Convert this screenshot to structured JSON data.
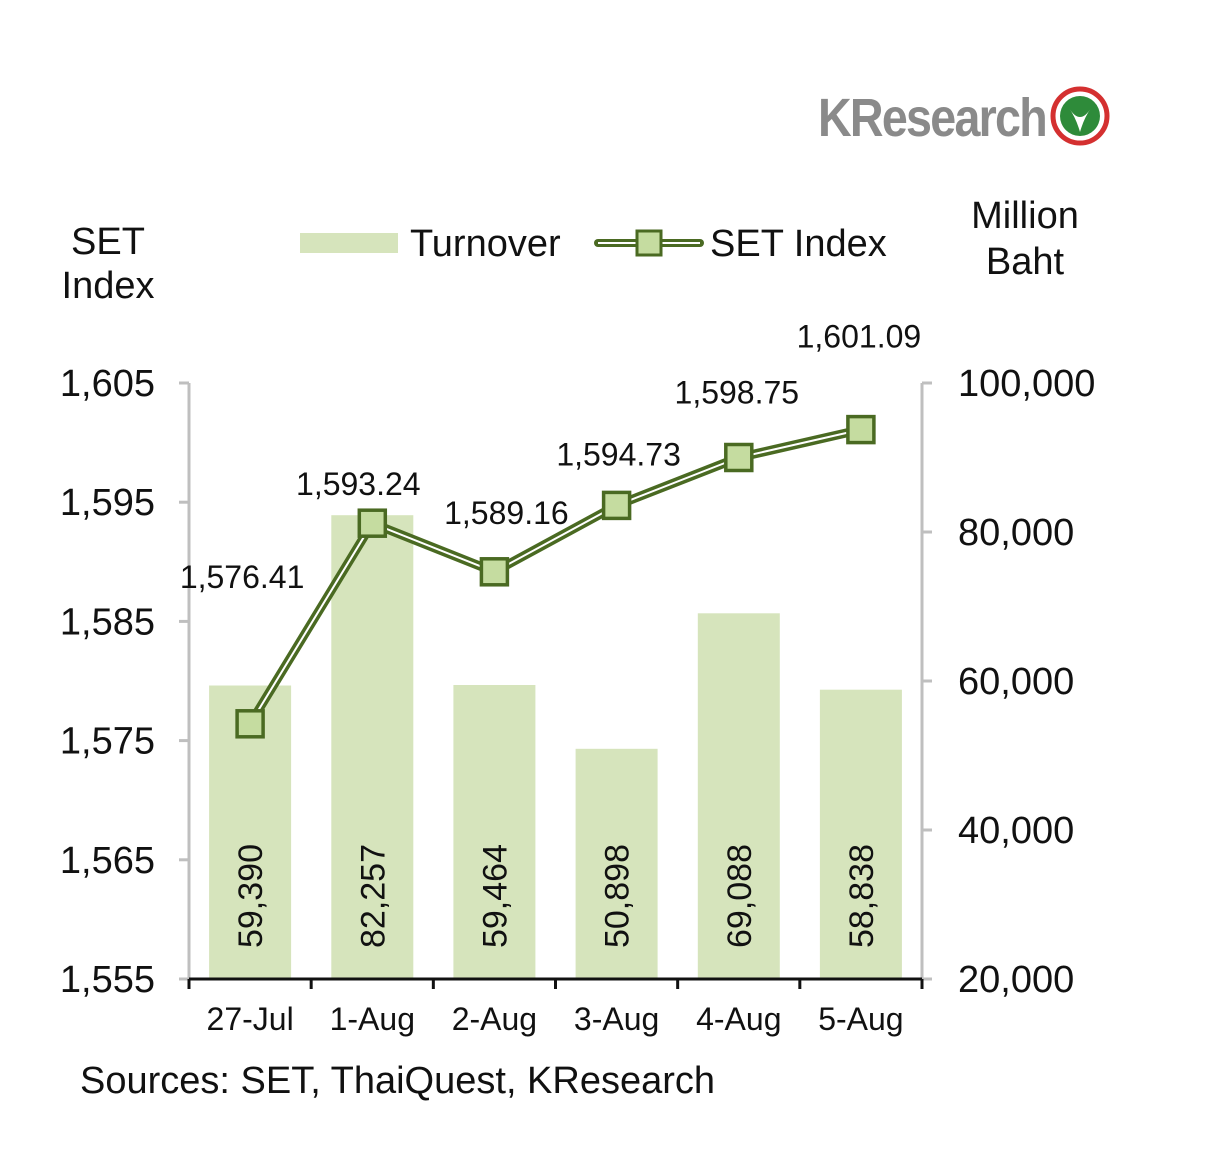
{
  "logo": {
    "text": "KResearch"
  },
  "chart_data": {
    "type": "bar",
    "categories": [
      "27-Jul",
      "1-Aug",
      "2-Aug",
      "3-Aug",
      "4-Aug",
      "5-Aug"
    ],
    "series": [
      {
        "name": "Turnover",
        "type": "bar",
        "axis": "right",
        "values": [
          59390,
          82257,
          59464,
          50898,
          69088,
          58838
        ],
        "labels": [
          "59,390",
          "82,257",
          "59,464",
          "50,898",
          "69,088",
          "58,838"
        ]
      },
      {
        "name": "SET Index",
        "type": "line",
        "axis": "left",
        "values": [
          1576.41,
          1593.24,
          1589.16,
          1594.73,
          1598.75,
          1601.09
        ],
        "labels": [
          "1,576.41",
          "1,593.24",
          "1,589.16",
          "1,594.73",
          "1,598.75",
          "1,601.09"
        ]
      }
    ],
    "left_axis": {
      "title_line1": "SET",
      "title_line2": "Index",
      "ylim": [
        1555,
        1605
      ],
      "ticks": [
        1555,
        1565,
        1575,
        1585,
        1595,
        1605
      ],
      "tick_labels": [
        "1,555",
        "1,565",
        "1,575",
        "1,585",
        "1,595",
        "1,605"
      ]
    },
    "right_axis": {
      "title_line1": "Million",
      "title_line2": "Baht",
      "ylim": [
        20000,
        100000
      ],
      "ticks": [
        20000,
        40000,
        60000,
        80000,
        100000
      ],
      "tick_labels": [
        "20,000",
        "40,000",
        "60,000",
        "80,000",
        "100,000"
      ]
    },
    "legend": {
      "position": "top",
      "items": [
        "Turnover",
        "SET Index"
      ]
    },
    "grid": false,
    "source": "Sources: SET, ThaiQuest, KResearch",
    "colors": {
      "bar": "#d6e4bc",
      "line": "#4a6a22",
      "marker_fill": "#c5dca0",
      "axis": "#bfbfbf",
      "text": "#111111",
      "logo_text": "#8a8a8a",
      "logo_green": "#2e8b3a",
      "logo_red": "#d43030"
    }
  }
}
